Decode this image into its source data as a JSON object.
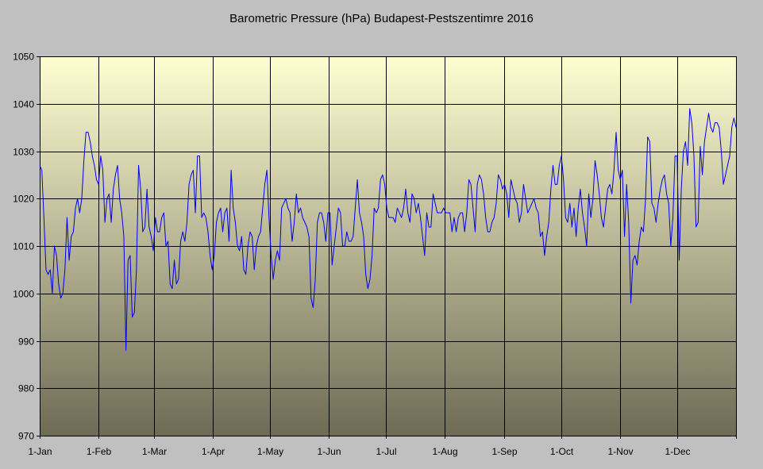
{
  "chart_data": {
    "type": "line",
    "title": "Barometric Pressure (hPa) Budapest-Pestszentimre 2016",
    "xlabel": "",
    "ylabel": "",
    "ylim": [
      970,
      1050
    ],
    "yticks": [
      970,
      980,
      990,
      1000,
      1010,
      1020,
      1030,
      1040,
      1050
    ],
    "xlim_day": [
      0,
      366
    ],
    "xticks": [
      {
        "label": "1-Jan",
        "day": 0
      },
      {
        "label": "1-Feb",
        "day": 31
      },
      {
        "label": "1-Mar",
        "day": 60
      },
      {
        "label": "1-Apr",
        "day": 91
      },
      {
        "label": "1-May",
        "day": 121
      },
      {
        "label": "1-Jun",
        "day": 152
      },
      {
        "label": "1-Jul",
        "day": 182
      },
      {
        "label": "1-Aug",
        "day": 213
      },
      {
        "label": "1-Sep",
        "day": 244
      },
      {
        "label": "1-Oct",
        "day": 274
      },
      {
        "label": "1-Nov",
        "day": 305
      },
      {
        "label": "1-Dec",
        "day": 335
      }
    ],
    "grid": true,
    "legend": "none",
    "colors": {
      "line": "#0000ee",
      "background": "#c0c0c0",
      "plot_top": "#fffed2",
      "plot_bottom": "#6e6b55",
      "grid": "#000000"
    },
    "series": [
      {
        "values": [
          1027,
          1026,
          1016,
          1005,
          1004,
          1005,
          1000,
          1010,
          1008,
          1002,
          999,
          1000,
          1005,
          1016,
          1007,
          1012,
          1013,
          1018,
          1020,
          1017,
          1020,
          1028,
          1034,
          1034,
          1032,
          1029,
          1027,
          1024,
          1023,
          1029,
          1026,
          1015,
          1020,
          1021,
          1015,
          1022,
          1025,
          1027,
          1020,
          1017,
          1012,
          988,
          1007,
          1008,
          995,
          996,
          1005,
          1027,
          1022,
          1013,
          1014,
          1022,
          1014,
          1012,
          1009,
          1016,
          1013,
          1013,
          1016,
          1017,
          1010,
          1011,
          1002,
          1001,
          1007,
          1002,
          1003,
          1011,
          1013,
          1011,
          1015,
          1023,
          1025,
          1026,
          1017,
          1029,
          1029,
          1016,
          1017,
          1016,
          1013,
          1008,
          1005,
          1008,
          1015,
          1017,
          1018,
          1013,
          1017,
          1018,
          1011,
          1026,
          1018,
          1015,
          1010,
          1009,
          1012,
          1005,
          1004,
          1010,
          1013,
          1012,
          1005,
          1010,
          1012,
          1013,
          1018,
          1023,
          1026,
          1016,
          1008,
          1003,
          1007,
          1009,
          1007,
          1018,
          1019,
          1020,
          1018,
          1017,
          1011,
          1015,
          1021,
          1017,
          1018,
          1016,
          1015,
          1014,
          1012,
          999,
          997,
          1003,
          1015,
          1017,
          1017,
          1015,
          1011,
          1017,
          1017,
          1006,
          1010,
          1014,
          1018,
          1017,
          1010,
          1010,
          1013,
          1011,
          1011,
          1012,
          1018,
          1024,
          1017,
          1015,
          1012,
          1004,
          1001,
          1003,
          1008,
          1018,
          1017,
          1018,
          1024,
          1025,
          1023,
          1018,
          1016,
          1016,
          1016,
          1015,
          1018,
          1017,
          1016,
          1018,
          1022,
          1017,
          1015,
          1021,
          1020,
          1017,
          1019,
          1016,
          1012,
          1008,
          1017,
          1014,
          1014,
          1021,
          1019,
          1017,
          1017,
          1017,
          1018,
          1017,
          1017,
          1017,
          1013,
          1016,
          1013,
          1016,
          1017,
          1017,
          1013,
          1017,
          1024,
          1023,
          1018,
          1013,
          1023,
          1025,
          1024,
          1021,
          1016,
          1013,
          1013,
          1015,
          1016,
          1019,
          1025,
          1024,
          1022,
          1023,
          1021,
          1016,
          1024,
          1022,
          1020,
          1019,
          1015,
          1017,
          1023,
          1020,
          1017,
          1018,
          1019,
          1020,
          1018,
          1017,
          1012,
          1013,
          1008,
          1012,
          1015,
          1022,
          1027,
          1023,
          1023,
          1027,
          1029,
          1024,
          1016,
          1015,
          1019,
          1014,
          1018,
          1012,
          1018,
          1022,
          1017,
          1014,
          1010,
          1021,
          1016,
          1020,
          1028,
          1025,
          1021,
          1016,
          1014,
          1018,
          1022,
          1023,
          1021,
          1026,
          1034,
          1026,
          1024,
          1026,
          1012,
          1023,
          1015,
          998,
          1007,
          1008,
          1006,
          1011,
          1014,
          1013,
          1020,
          1033,
          1032,
          1019,
          1018,
          1015,
          1019,
          1022,
          1024,
          1025,
          1021,
          1019,
          1010,
          1016,
          1029,
          1029,
          1007,
          1022,
          1030,
          1032,
          1027,
          1039,
          1036,
          1029,
          1014,
          1015,
          1031,
          1025,
          1032,
          1035,
          1038,
          1035,
          1034,
          1036,
          1036,
          1035,
          1030,
          1023,
          1025,
          1027,
          1029,
          1035,
          1037,
          1035
        ]
      }
    ]
  }
}
